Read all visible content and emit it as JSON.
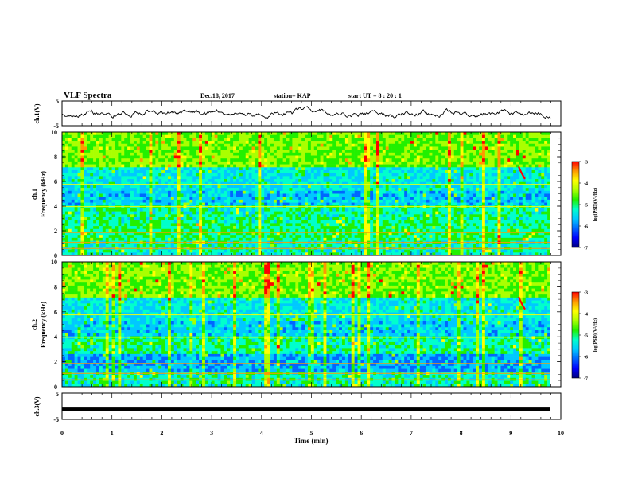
{
  "header": {
    "title": "VLF Spectra",
    "date": "Dec.18, 2017",
    "station": "station= KAP",
    "start": "start  UT =   8  : 20 : 1"
  },
  "colors": {
    "colormap": [
      "#00007a",
      "#0000ff",
      "#0066ff",
      "#00c8ff",
      "#00ffcc",
      "#22f000",
      "#aaff00",
      "#ffff00",
      "#ff9900",
      "#ff0000",
      "#ffffff"
    ],
    "bg": "#ffffff",
    "ink": "#000000"
  },
  "chart_data": [
    {
      "type": "line",
      "name": "ch1-waveform",
      "ylabel": "ch.1(V)",
      "ylim": [
        -5,
        5
      ],
      "yticks": [
        "5",
        "-5"
      ],
      "xlim": [
        0,
        10
      ]
    },
    {
      "type": "heatmap",
      "name": "ch1-spectrogram",
      "ylabel_top": "ch.1",
      "ylabel": "Frequency  (kHz)",
      "ylim": [
        0,
        10
      ],
      "yticks": [
        "0",
        "2",
        "4",
        "6",
        "8",
        "10"
      ],
      "xlim": [
        0,
        10
      ],
      "colorbar": {
        "label": "log(PSD)(V²/Hz)",
        "range": [
          -7,
          -3
        ],
        "ticks": [
          "-3",
          "-4",
          "-5",
          "-6",
          "-7"
        ]
      }
    },
    {
      "type": "heatmap",
      "name": "ch2-spectrogram",
      "ylabel_top": "ch.2",
      "ylabel": "Frequency  (kHz)",
      "ylim": [
        0,
        10
      ],
      "yticks": [
        "0",
        "2",
        "4",
        "6",
        "8",
        "10"
      ],
      "xlim": [
        0,
        10
      ],
      "colorbar": {
        "label": "log(PSD)(V²/Hz)",
        "range": [
          -7,
          -3
        ],
        "ticks": [
          "-3",
          "-4",
          "-5",
          "-6",
          "-7"
        ]
      }
    },
    {
      "type": "line",
      "name": "ch3-waveform",
      "ylabel": "ch.3(V)",
      "ylim": [
        -5,
        5
      ],
      "yticks": [
        "5",
        "-5"
      ],
      "xlim": [
        0,
        10
      ],
      "value": -1.1
    }
  ],
  "xaxis": {
    "label": "Time  (min)",
    "ticks": [
      "0",
      "1",
      "2",
      "3",
      "4",
      "5",
      "6",
      "7",
      "8",
      "9",
      "10"
    ]
  }
}
